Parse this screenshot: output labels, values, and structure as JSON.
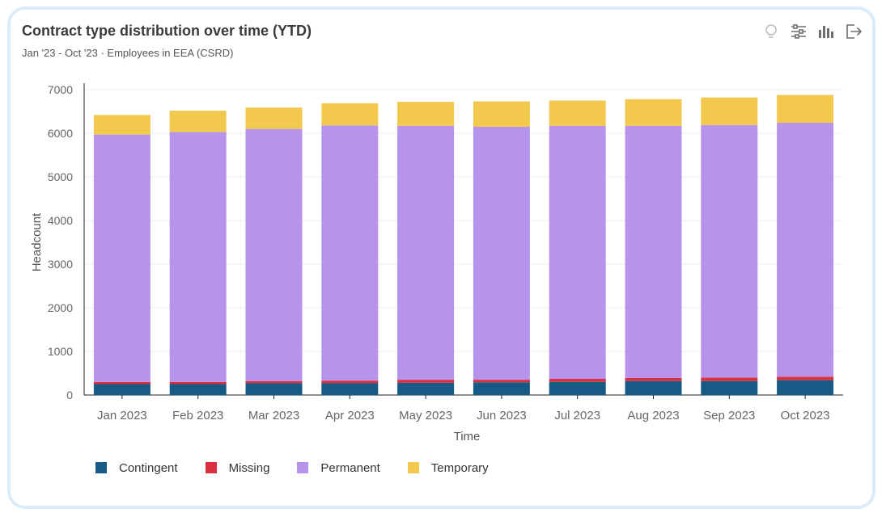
{
  "header": {
    "title": "Contract type distribution over time (YTD)",
    "subtitle": "Jan '23 - Oct '23 · Employees in EEA (CSRD)"
  },
  "toolbar": {
    "icons": [
      "lightbulb-icon",
      "sliders-icon",
      "bar-chart-icon",
      "export-icon"
    ]
  },
  "chart_data": {
    "type": "bar",
    "stacked": true,
    "categories": [
      "Jan 2023",
      "Feb 2023",
      "Mar 2023",
      "Apr 2023",
      "May 2023",
      "Jun 2023",
      "Jul 2023",
      "Aug 2023",
      "Sep 2023",
      "Oct 2023"
    ],
    "series": [
      {
        "name": "Contingent",
        "color": "#165a86",
        "values": [
          250,
          250,
          270,
          270,
          280,
          290,
          300,
          320,
          320,
          340
        ]
      },
      {
        "name": "Missing",
        "color": "#d92f3f",
        "values": [
          50,
          50,
          50,
          60,
          70,
          60,
          70,
          70,
          80,
          80
        ]
      },
      {
        "name": "Permanent",
        "color": "#b794ec",
        "values": [
          5670,
          5730,
          5780,
          5850,
          5820,
          5800,
          5800,
          5780,
          5790,
          5820
        ]
      },
      {
        "name": "Temporary",
        "color": "#f2c94c",
        "values": [
          450,
          490,
          490,
          510,
          550,
          580,
          580,
          610,
          630,
          640
        ]
      }
    ],
    "xlabel": "Time",
    "ylabel": "Headcount",
    "ylim": [
      0,
      7000
    ],
    "yticks": [
      0,
      1000,
      2000,
      3000,
      4000,
      5000,
      6000,
      7000
    ],
    "grid": true,
    "legend_position": "bottom-left"
  }
}
